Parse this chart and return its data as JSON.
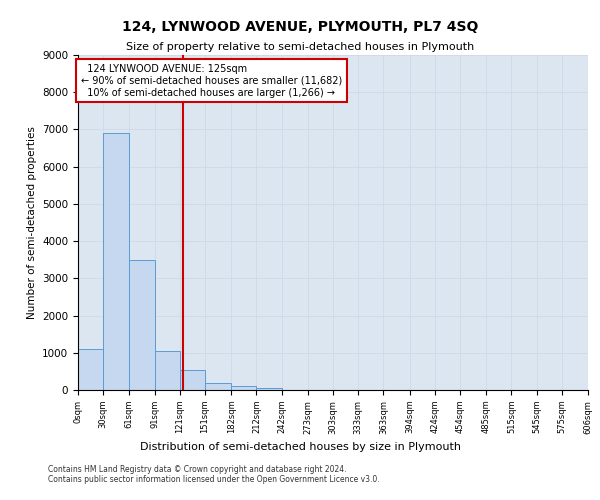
{
  "title": "124, LYNWOOD AVENUE, PLYMOUTH, PL7 4SQ",
  "subtitle": "Size of property relative to semi-detached houses in Plymouth",
  "xlabel": "Distribution of semi-detached houses by size in Plymouth",
  "ylabel": "Number of semi-detached properties",
  "property_label": "124 LYNWOOD AVENUE: 125sqm",
  "pct_smaller": 90,
  "num_smaller": "11,682",
  "pct_larger": 10,
  "num_larger": "1,266",
  "bin_edges": [
    0,
    30,
    61,
    91,
    121,
    151,
    182,
    212,
    242,
    273,
    303,
    333,
    363,
    394,
    424,
    454,
    485,
    515,
    545,
    575,
    606
  ],
  "bin_counts": [
    1100,
    6900,
    3500,
    1050,
    550,
    200,
    100,
    50,
    0,
    0,
    0,
    0,
    0,
    0,
    0,
    0,
    0,
    0,
    0,
    0
  ],
  "bar_color": "#c5d8ef",
  "bar_edge_color": "#5b9bd5",
  "red_line_x": 125,
  "red_line_color": "#cc0000",
  "annotation_box_color": "#cc0000",
  "grid_color": "#d0d8e4",
  "background_color": "#dce6f1",
  "ylim": [
    0,
    9000
  ],
  "yticks": [
    0,
    1000,
    2000,
    3000,
    4000,
    5000,
    6000,
    7000,
    8000,
    9000
  ],
  "footer_line1": "Contains HM Land Registry data © Crown copyright and database right 2024.",
  "footer_line2": "Contains public sector information licensed under the Open Government Licence v3.0."
}
